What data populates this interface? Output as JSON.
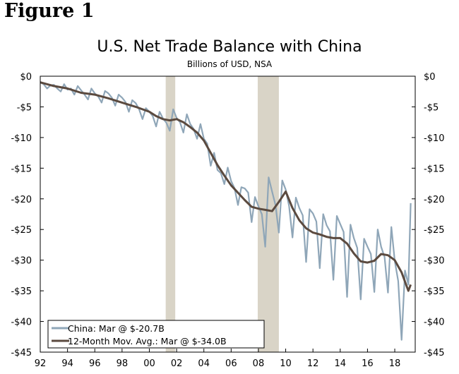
{
  "figure_label": "Figure 1",
  "chart_data": {
    "type": "line",
    "title": "U.S. Net Trade Balance with China",
    "subtitle": "Billions of USD, NSA",
    "xlabel": "",
    "ylabel": "",
    "xlim": [
      1992.0,
      2019.5
    ],
    "ylim": [
      -45,
      0
    ],
    "y_ticks": [
      0,
      -5,
      -10,
      -15,
      -20,
      -25,
      -30,
      -35,
      -40,
      -45
    ],
    "y_tick_labels": [
      "$0",
      "-$5",
      "-$10",
      "-$15",
      "-$20",
      "-$25",
      "-$30",
      "-$35",
      "-$40",
      "-$45"
    ],
    "x_ticks": [
      1992,
      1994,
      1996,
      1998,
      2000,
      2002,
      2004,
      2006,
      2008,
      2010,
      2012,
      2014,
      2016,
      2018
    ],
    "x_tick_labels": [
      "92",
      "94",
      "96",
      "98",
      "00",
      "02",
      "04",
      "06",
      "08",
      "10",
      "12",
      "14",
      "16",
      "18"
    ],
    "recessions": [
      [
        2001.2,
        2001.9
      ],
      [
        2007.95,
        2009.5
      ]
    ],
    "legend_position": "bottom-left",
    "colors": {
      "china": "#8fa6b8",
      "moving_avg": "#5b4a3f",
      "recession": "#d9d4c7"
    },
    "series": [
      {
        "name": "China: Mar @ $-20.7B",
        "color": "#8fa6b8",
        "x": [
          1992.0,
          1992.25,
          1992.5,
          1992.75,
          1993.0,
          1993.25,
          1993.5,
          1993.75,
          1994.0,
          1994.25,
          1994.5,
          1994.75,
          1995.0,
          1995.25,
          1995.5,
          1995.75,
          1996.0,
          1996.25,
          1996.5,
          1996.75,
          1997.0,
          1997.25,
          1997.5,
          1997.75,
          1998.0,
          1998.25,
          1998.5,
          1998.75,
          1999.0,
          1999.25,
          1999.5,
          1999.75,
          2000.0,
          2000.25,
          2000.5,
          2000.75,
          2001.0,
          2001.25,
          2001.5,
          2001.75,
          2002.0,
          2002.25,
          2002.5,
          2002.75,
          2003.0,
          2003.25,
          2003.5,
          2003.75,
          2004.0,
          2004.25,
          2004.5,
          2004.75,
          2005.0,
          2005.25,
          2005.5,
          2005.75,
          2006.0,
          2006.25,
          2006.5,
          2006.75,
          2007.0,
          2007.25,
          2007.5,
          2007.75,
          2008.0,
          2008.25,
          2008.5,
          2008.75,
          2009.0,
          2009.25,
          2009.5,
          2009.75,
          2010.0,
          2010.25,
          2010.5,
          2010.75,
          2011.0,
          2011.25,
          2011.5,
          2011.75,
          2012.0,
          2012.25,
          2012.5,
          2012.75,
          2013.0,
          2013.25,
          2013.5,
          2013.75,
          2014.0,
          2014.25,
          2014.5,
          2014.75,
          2015.0,
          2015.25,
          2015.5,
          2015.75,
          2016.0,
          2016.25,
          2016.5,
          2016.75,
          2017.0,
          2017.25,
          2017.5,
          2017.75,
          2018.0,
          2018.25,
          2018.5,
          2018.75,
          2019.0,
          2019.17
        ],
        "values": [
          -1.0,
          -1.3,
          -2.0,
          -1.5,
          -1.4,
          -2.0,
          -2.5,
          -1.3,
          -2.2,
          -2.0,
          -3.0,
          -1.6,
          -2.3,
          -3.0,
          -3.8,
          -2.0,
          -2.8,
          -3.3,
          -4.3,
          -2.4,
          -2.8,
          -3.5,
          -4.8,
          -3.0,
          -3.5,
          -4.2,
          -5.8,
          -3.9,
          -4.4,
          -5.4,
          -7.0,
          -5.2,
          -5.8,
          -6.5,
          -8.2,
          -5.8,
          -6.9,
          -7.6,
          -8.9,
          -5.4,
          -6.8,
          -7.5,
          -9.2,
          -6.2,
          -7.8,
          -8.6,
          -10.2,
          -7.8,
          -10.2,
          -11.0,
          -14.6,
          -12.5,
          -15.3,
          -15.8,
          -17.6,
          -14.9,
          -17.1,
          -18.3,
          -21.0,
          -18.1,
          -18.3,
          -19.0,
          -23.8,
          -19.7,
          -21.2,
          -22.5,
          -27.8,
          -16.5,
          -18.8,
          -21.0,
          -25.5,
          -17.0,
          -18.5,
          -21.2,
          -26.3,
          -19.8,
          -21.5,
          -22.7,
          -30.3,
          -21.7,
          -22.4,
          -23.7,
          -31.3,
          -22.5,
          -24.3,
          -25.3,
          -33.2,
          -22.8,
          -24.1,
          -25.4,
          -36.0,
          -24.2,
          -26.4,
          -28.0,
          -36.4,
          -26.5,
          -27.8,
          -29.0,
          -35.2,
          -25.0,
          -27.8,
          -29.5,
          -35.3,
          -24.6,
          -30.1,
          -33.4,
          -43.0,
          -31.7,
          -34.0,
          -20.7
        ]
      },
      {
        "name": "12-Month Mov. Avg.: Mar @ $-34.0B",
        "color": "#5b4a3f",
        "x": [
          1992.0,
          1993.0,
          1994.0,
          1995.0,
          1996.0,
          1997.0,
          1998.0,
          1999.0,
          2000.0,
          2000.5,
          2001.0,
          2001.5,
          2002.0,
          2002.5,
          2003.0,
          2003.5,
          2004.0,
          2004.5,
          2005.0,
          2005.5,
          2006.0,
          2006.5,
          2007.0,
          2007.5,
          2008.0,
          2008.5,
          2009.0,
          2009.5,
          2010.0,
          2010.5,
          2011.0,
          2011.5,
          2012.0,
          2012.5,
          2013.0,
          2013.5,
          2014.0,
          2014.5,
          2015.0,
          2015.5,
          2016.0,
          2016.5,
          2017.0,
          2017.5,
          2018.0,
          2018.5,
          2019.0,
          2019.17
        ],
        "values": [
          -1.0,
          -1.6,
          -2.0,
          -2.7,
          -3.0,
          -3.6,
          -4.3,
          -5.0,
          -5.8,
          -6.5,
          -7.0,
          -7.2,
          -7.0,
          -7.5,
          -8.3,
          -9.2,
          -10.5,
          -12.5,
          -14.5,
          -16.2,
          -17.8,
          -19.0,
          -20.2,
          -21.3,
          -21.6,
          -21.8,
          -22.0,
          -20.5,
          -18.8,
          -21.5,
          -23.5,
          -24.8,
          -25.5,
          -25.8,
          -26.2,
          -26.4,
          -26.4,
          -27.3,
          -28.9,
          -30.2,
          -30.4,
          -30.1,
          -29.0,
          -29.2,
          -30.0,
          -32.0,
          -35.0,
          -34.0
        ]
      }
    ]
  }
}
